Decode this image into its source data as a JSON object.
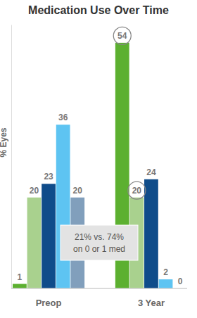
{
  "chart_data": {
    "type": "bar",
    "title": "Medication Use Over Time",
    "y_label": "% Eyes",
    "categories": [
      "Preop",
      "3 Year"
    ],
    "series": [
      {
        "color": "#5cb030",
        "values": [
          1,
          54
        ]
      },
      {
        "color": "#a9d18e",
        "values": [
          20,
          20
        ]
      },
      {
        "color": "#0f4c8a",
        "values": [
          23,
          24
        ]
      },
      {
        "color": "#5ec4f2",
        "values": [
          36,
          2
        ]
      },
      {
        "color": "#819fbc",
        "values": [
          20,
          0
        ]
      }
    ],
    "annotation": [
      "21% vs. 74%",
      "on 0 or 1 med"
    ],
    "ylim": [
      0,
      58
    ],
    "yticks": [],
    "data_labels": true,
    "tick_labels": "x",
    "grid": false
  }
}
